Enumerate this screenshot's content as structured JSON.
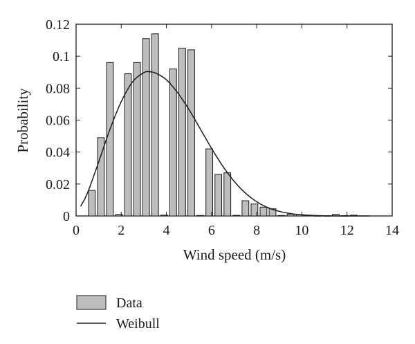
{
  "chart_data": {
    "type": "bar",
    "xlabel": "Wind speed (m/s)",
    "ylabel": "Probability",
    "xlim": [
      0,
      14
    ],
    "ylim": [
      0,
      0.12
    ],
    "x_ticks": [
      "0",
      "2",
      "4",
      "6",
      "8",
      "10",
      "12",
      "14"
    ],
    "y_ticks": [
      "0",
      "0.02",
      "0.04",
      "0.06",
      "0.08",
      "0.1",
      "0.12"
    ],
    "grid": false,
    "legend_position": "bottom-left, below plot",
    "bar_color": "#bdbdbd",
    "bar_edge_color": "#1a1a1a",
    "line_color": "#1a1a1a",
    "series": [
      {
        "name": "Data",
        "type": "bar",
        "x": [
          0.7,
          1.1,
          1.5,
          1.9,
          2.3,
          2.7,
          3.1,
          3.5,
          3.9,
          4.3,
          4.7,
          5.1,
          5.5,
          5.9,
          6.3,
          6.7,
          7.1,
          7.5,
          7.9,
          8.3,
          8.7,
          9.1,
          9.5,
          9.9,
          10.3,
          10.7,
          11.1,
          11.5,
          11.9,
          12.3
        ],
        "values": [
          0.016,
          0.049,
          0.096,
          0.001,
          0.089,
          0.096,
          0.111,
          0.114,
          0.0005,
          0.092,
          0.105,
          0.104,
          0.0003,
          0.042,
          0.026,
          0.027,
          0.0004,
          0.0095,
          0.0075,
          0.0055,
          0.0045,
          0.0003,
          0.0012,
          0.0008,
          0.0005,
          0.0002,
          0.0002,
          0.001,
          0.0002,
          0.0005
        ]
      },
      {
        "name": "Weibull",
        "type": "line",
        "x": [
          0.2,
          0.5,
          1.0,
          1.5,
          2.0,
          2.5,
          3.0,
          3.3,
          3.6,
          4.0,
          4.5,
          5.0,
          5.5,
          6.0,
          6.5,
          7.0,
          7.5,
          8.0,
          8.5,
          9.0,
          9.5,
          10.0,
          11.0,
          12.0,
          13.0
        ],
        "values": [
          0.006,
          0.0142,
          0.0338,
          0.0542,
          0.0715,
          0.0839,
          0.0897,
          0.0902,
          0.0889,
          0.0852,
          0.0771,
          0.0666,
          0.0545,
          0.0423,
          0.0311,
          0.0217,
          0.0143,
          0.0089,
          0.0052,
          0.0029,
          0.0015,
          0.0007,
          0.0001,
          2e-05,
          0.0
        ]
      }
    ]
  }
}
